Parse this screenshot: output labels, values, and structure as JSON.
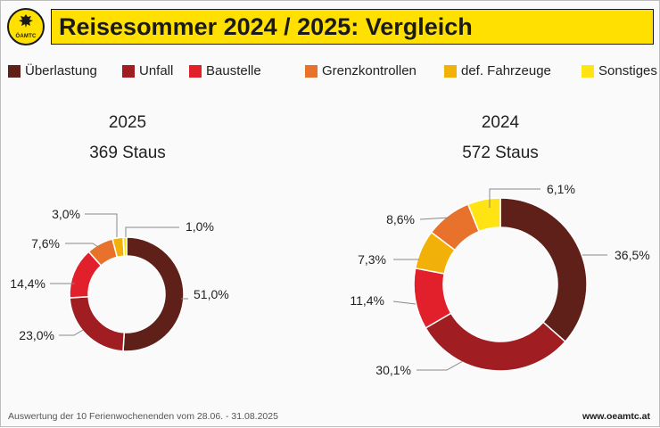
{
  "title": "Reisesommer 2024 / 2025: Vergleich",
  "logo": {
    "text": "ÖAMTC",
    "icon": "oeamtc-eagle-logo"
  },
  "legend": [
    {
      "label": "Überlastung",
      "color": "#5e2018"
    },
    {
      "label": "Unfall",
      "color": "#a01d22"
    },
    {
      "label": "Baustelle",
      "color": "#e2202b"
    },
    {
      "label": "Grenzkontrollen",
      "color": "#e8722c"
    },
    {
      "label": "def. Fahrzeuge",
      "color": "#f2b109"
    },
    {
      "label": "Sonstiges",
      "color": "#ffe312"
    }
  ],
  "charts": {
    "c2025": {
      "year": "2025",
      "subtitle": "369 Staus"
    },
    "c2024": {
      "year": "2024",
      "subtitle": "572 Staus"
    }
  },
  "chart_data": [
    {
      "type": "pie",
      "title": "2025",
      "subtitle": "369 Staus",
      "categories": [
        "Überlastung",
        "Unfall",
        "Baustelle",
        "Grenzkontrollen",
        "def. Fahrzeuge",
        "Sonstiges"
      ],
      "values": [
        51.0,
        23.0,
        14.4,
        7.6,
        3.0,
        1.0
      ],
      "labels": [
        "51,0%",
        "23,0%",
        "14,4%",
        "7,6%",
        "3,0%",
        "1,0%"
      ]
    },
    {
      "type": "pie",
      "title": "2024",
      "subtitle": "572 Staus",
      "categories": [
        "Überlastung",
        "Unfall",
        "Baustelle",
        "def. Fahrzeuge",
        "Grenzkontrollen",
        "Sonstiges"
      ],
      "values": [
        36.5,
        30.1,
        11.4,
        7.3,
        8.6,
        6.1
      ],
      "labels": [
        "36,5%",
        "30,1%",
        "11,4%",
        "7,3%",
        "8,6%",
        "6,1%"
      ]
    }
  ],
  "footer": {
    "note": "Auswertung der 10 Ferienwochenenden vom 28.06. - 31.08.2025",
    "website": "www.oeamtc.at"
  }
}
